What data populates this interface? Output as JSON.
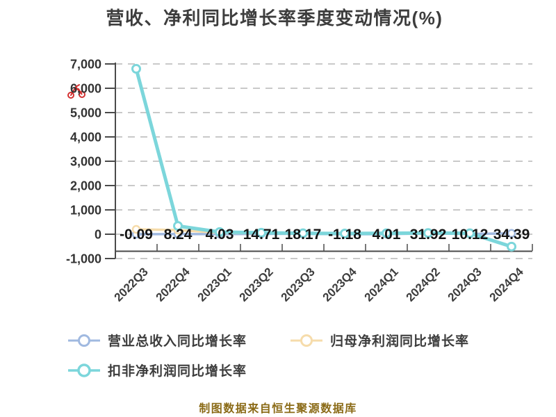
{
  "title": "营收、净利同比增长率季度变动情况(%)",
  "footer": "制图数据来自恒生聚源数据库",
  "watermark": {
    "icon": "red-scribble-icon",
    "color": "#d43030"
  },
  "legend": {
    "items": [
      {
        "label": "营业总收入同比增长率"
      },
      {
        "label": "归母净利润同比增长率"
      },
      {
        "label": "扣非净利润同比增长率"
      }
    ]
  },
  "chart_data": {
    "type": "line",
    "title": "营收、净利同比增长率季度变动情况(%)",
    "categories": [
      "2022Q3",
      "2022Q4",
      "2023Q1",
      "2023Q2",
      "2023Q3",
      "2023Q4",
      "2024Q1",
      "2024Q2",
      "2024Q3",
      "2024Q4"
    ],
    "series": [
      {
        "name": "营业总收入同比增长率",
        "color": "#a0b9e0",
        "values": [
          -0.09,
          8.24,
          4.03,
          14.71,
          18.17,
          -1.18,
          4.01,
          31.92,
          10.12,
          34.39
        ]
      },
      {
        "name": "归母净利润同比增长率",
        "color": "#f6dcab",
        "values": [
          200,
          170,
          60,
          40,
          30,
          20,
          30,
          40,
          30,
          -500
        ]
      },
      {
        "name": "扣非净利润同比增长率",
        "color": "#7cd6db",
        "values": [
          6800,
          340,
          90,
          60,
          40,
          30,
          40,
          50,
          40,
          -510
        ]
      }
    ],
    "data_labels": [
      "-0.09",
      "8.24",
      "4.03",
      "14.71",
      "18.17",
      "-1.18",
      "4.01",
      "31.92",
      "10.12",
      "34.39"
    ],
    "labeled_series": "营业总收入同比增长率",
    "ylim": [
      -1000,
      7000
    ],
    "yticks": [
      7000,
      6000,
      5000,
      4000,
      3000,
      2000,
      1000,
      0,
      -1000
    ],
    "ytick_labels": [
      "7,000",
      "6,000",
      "5,000",
      "4,000",
      "3,000",
      "2,000",
      "1,000",
      "0",
      "-1,000"
    ],
    "grid": true,
    "grid_style": "dashed",
    "legend_position": "bottom",
    "colors": {
      "axis": "#4a4a4a",
      "grid": "#c9c9c9",
      "tick_text": "#333333",
      "data_label_text": "#141414",
      "title_text": "#3d3d3d",
      "footer_text": "#8a6a16",
      "marker_fill": "#ffffff"
    }
  }
}
